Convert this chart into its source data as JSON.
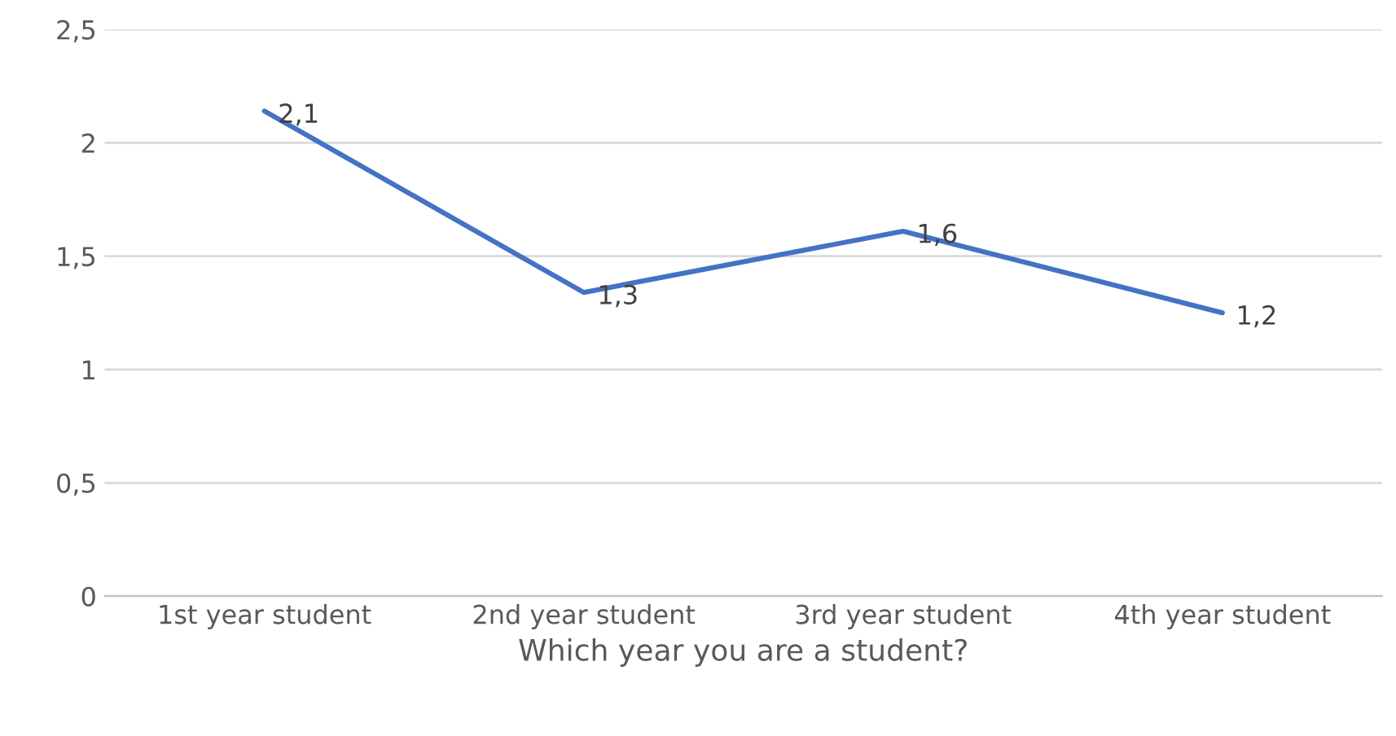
{
  "chart_data": {
    "type": "line",
    "xlabel": "Which year you are a student?",
    "categories": [
      "1st year student",
      "2nd year student",
      "3rd year student",
      "4th year student"
    ],
    "series": [
      {
        "color": "#4472c4",
        "values": [
          2.14,
          1.34,
          1.61,
          1.25
        ],
        "value_labels": [
          "2,1",
          "1,3",
          "1,6",
          "1,2"
        ]
      }
    ],
    "ylim": [
      0,
      2.5
    ],
    "yticks": [
      0,
      {
        "value": 0.5,
        "label": "0,5"
      },
      1,
      {
        "value": 1.5,
        "label": "1,5"
      },
      2,
      {
        "value": 2.5,
        "label": "2,5"
      }
    ],
    "grid": "y",
    "marker": "none",
    "line_style": "solid"
  }
}
